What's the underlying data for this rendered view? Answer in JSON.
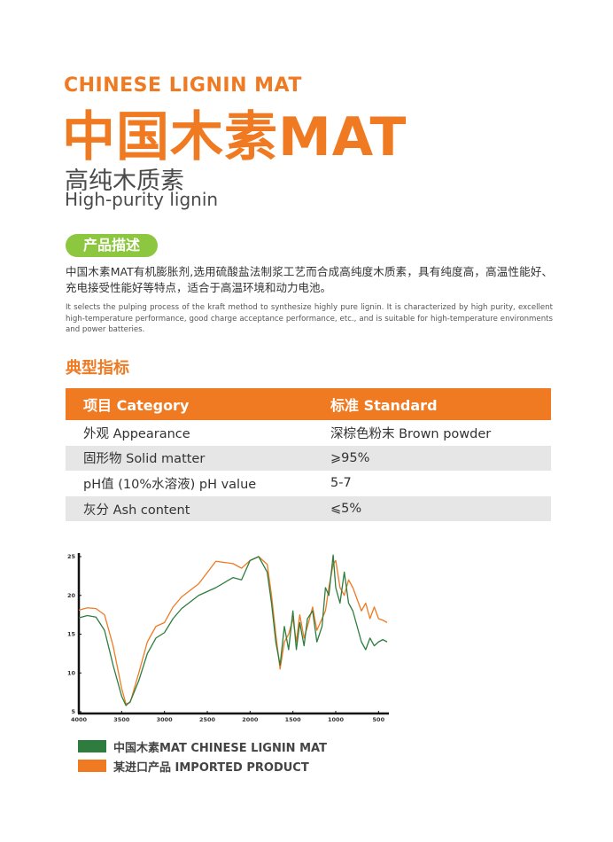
{
  "header": {
    "english_title": "CHINESE LIGNIN MAT",
    "chinese_title": "中国木素MAT",
    "chinese_subtitle": "高纯木质素",
    "english_subtitle": "High-purity lignin"
  },
  "description": {
    "heading": "产品描述",
    "chinese": "中国木素MAT有机膨胀剂,选用硫酸盐法制浆工艺而合成高纯度木质素，具有纯度高，高温性能好、充电接受性能好等特点，适合于高温环境和动力电池。",
    "english": "It selects the pulping process of the kraft method to synthesize highly pure lignin. It is characterized by high purity, excellent high-temperature performance, good charge acceptance performance, etc., and is suitable for high-temperature environments and power batteries."
  },
  "specs": {
    "heading": "典型指标",
    "header": [
      "项目 Category",
      "标准 Standard"
    ],
    "rows": [
      [
        "外观  Appearance",
        "深棕色粉末 Brown powder"
      ],
      [
        "固形物  Solid matter",
        "⩾95%"
      ],
      [
        "pH值 (10%水溶液) pH value",
        "5-7"
      ],
      [
        "灰分 Ash content",
        "⩽5%"
      ]
    ]
  },
  "chart_data": {
    "type": "line",
    "x": [
      4000,
      3900,
      3800,
      3700,
      3600,
      3500,
      3450,
      3400,
      3300,
      3200,
      3100,
      3000,
      2900,
      2800,
      2600,
      2400,
      2200,
      2100,
      2000,
      1900,
      1800,
      1750,
      1700,
      1650,
      1600,
      1550,
      1500,
      1460,
      1420,
      1370,
      1330,
      1270,
      1220,
      1160,
      1120,
      1080,
      1030,
      1000,
      950,
      900,
      850,
      800,
      750,
      700,
      650,
      600,
      550,
      500,
      450,
      400
    ],
    "series": [
      {
        "name": "中国木素MAT  CHINESE LIGNIN MAT",
        "color": "#2e7d3e",
        "values": [
          17.1,
          17.4,
          17.2,
          15.5,
          11,
          7,
          5.8,
          6.3,
          9,
          12.5,
          14.5,
          15.2,
          17,
          18.3,
          20,
          21,
          22.3,
          22,
          24.5,
          25,
          23,
          19,
          14,
          11,
          16,
          13,
          18,
          13,
          16.5,
          13.5,
          17,
          18,
          14,
          16,
          21,
          20,
          25.2,
          21,
          19,
          23,
          19,
          18,
          16,
          14,
          13,
          14.5,
          13.5,
          14,
          14.3,
          14
        ]
      },
      {
        "name": "某进口产品  IMPORTED PRODUCT",
        "color": "#f07a22",
        "values": [
          18.1,
          18.4,
          18.3,
          17.5,
          13.5,
          8,
          6,
          6.2,
          10,
          14,
          16,
          16.5,
          18.5,
          19.8,
          21.5,
          24.4,
          24.1,
          23.5,
          24.5,
          25,
          24,
          20,
          15,
          10.5,
          14,
          15,
          17,
          14,
          17.5,
          14.5,
          16,
          18.5,
          15.5,
          17,
          18,
          21,
          24,
          24.5,
          21,
          20,
          22,
          21,
          19.5,
          18,
          19,
          17,
          18.5,
          17,
          16.8,
          16.5
        ]
      }
    ],
    "xlim": [
      4000,
      400
    ],
    "ylim": [
      5,
      25
    ],
    "xticks": [
      4000,
      3500,
      3000,
      2500,
      2000,
      1500,
      1000,
      500
    ],
    "yticks": [
      5,
      10,
      15,
      20,
      25
    ]
  }
}
